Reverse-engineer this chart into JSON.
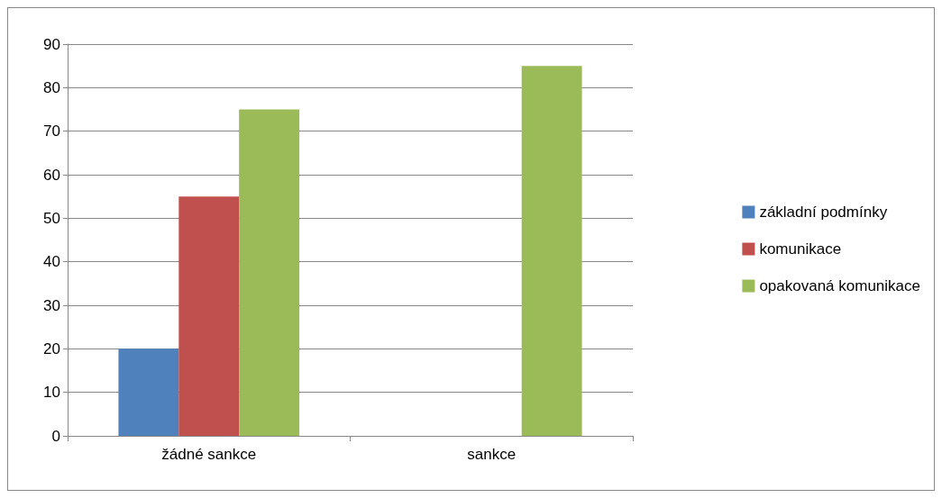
{
  "chart_data": {
    "type": "bar",
    "categories": [
      "žádné sankce",
      "sankce"
    ],
    "series": [
      {
        "name": "základní podmínky",
        "color": "#4f81bd",
        "values": [
          20,
          0
        ]
      },
      {
        "name": "komunikace",
        "color": "#c0504d",
        "values": [
          55,
          0
        ]
      },
      {
        "name": "opakovaná komunikace",
        "color": "#9bbb59",
        "values": [
          75,
          85
        ]
      }
    ],
    "ylim": [
      0,
      90
    ],
    "yticks": [
      0,
      10,
      20,
      30,
      40,
      50,
      60,
      70,
      80,
      90
    ],
    "grid": "y",
    "legend": "right"
  }
}
